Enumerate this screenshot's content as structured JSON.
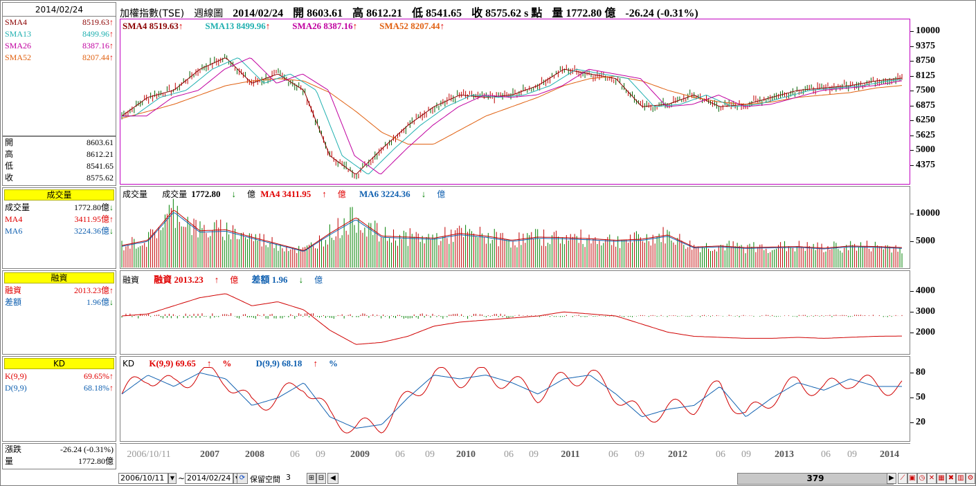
{
  "left": {
    "date": "2014/02/24",
    "sma": [
      {
        "name": "SMA4",
        "value": "8519.63",
        "color": "#8b0000",
        "dir": "up"
      },
      {
        "name": "SMA13",
        "value": "8499.96",
        "color": "#20b0b0",
        "dir": "up"
      },
      {
        "name": "SMA26",
        "value": "8387.16",
        "color": "#c000a0",
        "dir": "up"
      },
      {
        "name": "SMA52",
        "value": "8207.44",
        "color": "#e06010",
        "dir": "up"
      }
    ],
    "ohlc": [
      {
        "k": "開",
        "v": "8603.61"
      },
      {
        "k": "高",
        "v": "8612.21"
      },
      {
        "k": "低",
        "v": "8541.65"
      },
      {
        "k": "收",
        "v": "8575.62"
      }
    ],
    "vol_title": "成交量",
    "vol": [
      {
        "k": "成交量",
        "v": "1772.80億",
        "dir": "dn",
        "color": "#000000"
      },
      {
        "k": "MA4",
        "v": "3411.95億",
        "dir": "up",
        "color": "#e00000"
      },
      {
        "k": "MA6",
        "v": "3224.36億",
        "dir": "dn",
        "color": "#1060b0"
      }
    ],
    "margin_title": "融資",
    "margin": [
      {
        "k": "融資",
        "v": "2013.23億",
        "dir": "up",
        "color": "#e00000"
      },
      {
        "k": "差額",
        "v": "1.96億",
        "dir": "dn",
        "color": "#1060b0"
      }
    ],
    "kd_title": "KD",
    "kd": [
      {
        "k": "K(9,9)",
        "v": "69.65%",
        "dir": "up",
        "color": "#e00000"
      },
      {
        "k": "D(9,9)",
        "v": "68.18%",
        "dir": "up",
        "color": "#1060b0"
      }
    ],
    "change_label": "漲跌",
    "change_value": "-26.24 (-0.31%)",
    "volume_label": "量",
    "volume_value": "1772.80億"
  },
  "info": {
    "title": "加權指數(TSE)",
    "period": "週線圖",
    "date": "2014/02/24",
    "open": "開 8603.61",
    "high": "高 8612.21",
    "low": "低 8541.65",
    "close": "收 8575.62 s 點",
    "volume": "量 1772.80 億",
    "change": "-26.24 (-0.31%)"
  },
  "price_legend": [
    {
      "text": "SMA4 8519.63",
      "color": "#8b0000"
    },
    {
      "text": "SMA13 8499.96",
      "color": "#20b0b0"
    },
    {
      "text": "SMA26 8387.16",
      "color": "#c000a0"
    },
    {
      "text": "SMA52 8207.44",
      "color": "#e06010"
    }
  ],
  "vol_legend": {
    "label1": "成交量",
    "label2": "成交量",
    "vol": "1772.80",
    "unit": "億",
    "ma4": "MA4 3411.95",
    "ma6": "MA6 3224.36"
  },
  "margin_legend": {
    "label": "融資",
    "m1": "融資 2013.23",
    "m2": "差額 1.96",
    "unit": "億"
  },
  "kd_legend": {
    "label": "KD",
    "k": "K(9,9) 69.65",
    "d": "D(9,9) 68.18",
    "pct": "%"
  },
  "price_ticks": [
    "10000",
    "9375",
    "8750",
    "8125",
    "7500",
    "6875",
    "6250",
    "5625",
    "5000",
    "4375"
  ],
  "vol_ticks": [
    "10000",
    "5000"
  ],
  "margin_ticks": [
    "4000",
    "3000",
    "2000"
  ],
  "kd_ticks": [
    "80",
    "50",
    "20"
  ],
  "x_ticks": [
    {
      "t": "2006/10/11",
      "major": false
    },
    {
      "t": "2007",
      "major": true
    },
    {
      "t": "2008",
      "major": true
    },
    {
      "t": "06",
      "major": false
    },
    {
      "t": "09",
      "major": false
    },
    {
      "t": "2009",
      "major": true
    },
    {
      "t": "06",
      "major": false
    },
    {
      "t": "09",
      "major": false
    },
    {
      "t": "2010",
      "major": true
    },
    {
      "t": "06",
      "major": false
    },
    {
      "t": "09",
      "major": false
    },
    {
      "t": "2011",
      "major": true
    },
    {
      "t": "06",
      "major": false
    },
    {
      "t": "09",
      "major": false
    },
    {
      "t": "2012",
      "major": true
    },
    {
      "t": "06",
      "major": false
    },
    {
      "t": "09",
      "major": false
    },
    {
      "t": "2013",
      "major": true
    },
    {
      "t": "06",
      "major": false
    },
    {
      "t": "09",
      "major": false
    },
    {
      "t": "2014",
      "major": true
    }
  ],
  "toolbar": {
    "from": "2006/10/11",
    "tilde": "~",
    "to": "2014/02/24",
    "reserve_label": "保留空間",
    "reserve_value": "3",
    "position": "379"
  },
  "chart_data": {
    "type": "line",
    "title": "加權指數(TSE) 週線圖",
    "x": [
      "2006/10",
      "2007/01",
      "2007/04",
      "2007/07",
      "2007/10",
      "2008/01",
      "2008/04",
      "2008/07",
      "2008/10",
      "2009/01",
      "2009/04",
      "2009/07",
      "2009/10",
      "2010/01",
      "2010/04",
      "2010/07",
      "2010/10",
      "2011/01",
      "2011/04",
      "2011/07",
      "2011/10",
      "2012/01",
      "2012/04",
      "2012/07",
      "2012/10",
      "2013/01",
      "2013/04",
      "2013/07",
      "2013/10",
      "2014/01",
      "2014/02"
    ],
    "series": [
      {
        "name": "SMA4",
        "values": [
          6900,
          7700,
          8000,
          8900,
          9400,
          8300,
          8700,
          8000,
          5200,
          4400,
          5500,
          6500,
          7300,
          7800,
          7700,
          7800,
          8200,
          8900,
          8700,
          8500,
          7300,
          7400,
          7800,
          7300,
          7400,
          7700,
          8000,
          8100,
          8200,
          8400,
          8520
        ]
      },
      {
        "name": "SMA52",
        "values": [
          6800,
          7100,
          7400,
          7800,
          8200,
          8400,
          8500,
          8400,
          7900,
          7100,
          6200,
          5700,
          5700,
          6300,
          6900,
          7300,
          7700,
          8200,
          8500,
          8600,
          8400,
          8000,
          7700,
          7500,
          7400,
          7500,
          7700,
          7800,
          7900,
          8100,
          8207
        ]
      }
    ],
    "ylim": [
      4000,
      10500
    ]
  }
}
